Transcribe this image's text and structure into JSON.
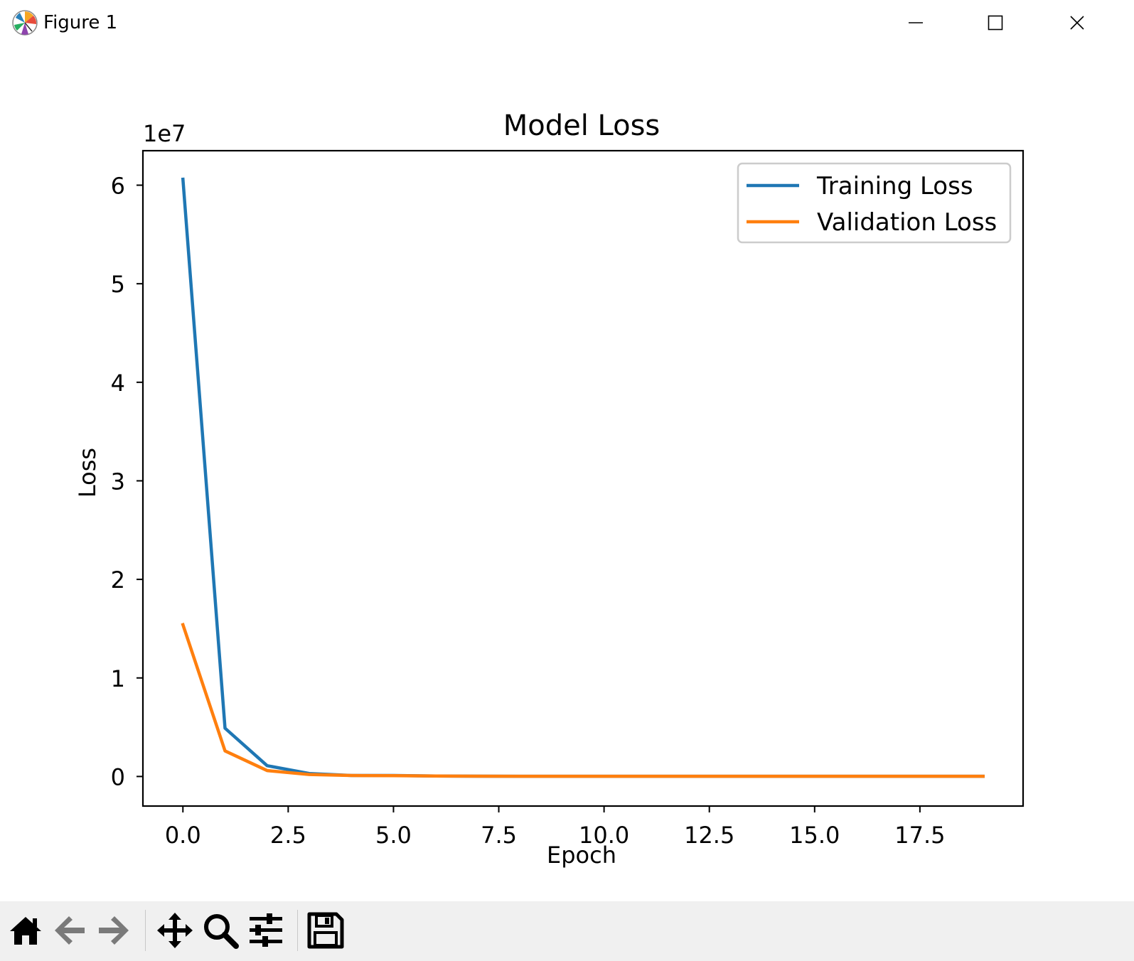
{
  "window": {
    "title": "Figure 1",
    "controls": [
      "minimize-icon",
      "maximize-icon",
      "close-icon"
    ]
  },
  "toolbar": {
    "buttons": [
      {
        "name": "home-icon"
      },
      {
        "name": "back-arrow-icon"
      },
      {
        "name": "forward-arrow-icon"
      },
      {
        "name": "pan-icon"
      },
      {
        "name": "zoom-icon"
      },
      {
        "name": "configure-subplots-icon"
      },
      {
        "name": "save-icon"
      }
    ]
  },
  "chart_data": {
    "type": "line",
    "title": "Model Loss",
    "xlabel": "Epoch",
    "ylabel": "Loss",
    "y_offset_text": "1e7",
    "xlim": [
      -0.95,
      19.95
    ],
    "ylim": [
      -0.3,
      6.35
    ],
    "y_units": "x 1e7",
    "xticks": [
      0.0,
      2.5,
      5.0,
      7.5,
      10.0,
      12.5,
      15.0,
      17.5
    ],
    "xtick_labels": [
      "0.0",
      "2.5",
      "5.0",
      "7.5",
      "10.0",
      "12.5",
      "15.0",
      "17.5"
    ],
    "yticks": [
      0,
      1,
      2,
      3,
      4,
      5,
      6
    ],
    "ytick_labels": [
      "0",
      "1",
      "2",
      "3",
      "4",
      "5",
      "6"
    ],
    "grid": false,
    "legend_position": "top-right",
    "x": [
      0,
      1,
      2,
      3,
      4,
      5,
      6,
      7,
      8,
      9,
      10,
      11,
      12,
      13,
      14,
      15,
      16,
      17,
      18,
      19
    ],
    "series": [
      {
        "name": "Training Loss",
        "color": "#1f77b4",
        "values": [
          6.06,
          0.49,
          0.11,
          0.03,
          0.01,
          0.01,
          0.005,
          0.003,
          0.002,
          0.002,
          0.002,
          0.002,
          0.002,
          0.002,
          0.002,
          0.002,
          0.002,
          0.002,
          0.002,
          0.002
        ]
      },
      {
        "name": "Validation Loss",
        "color": "#ff7f0e",
        "values": [
          1.54,
          0.26,
          0.06,
          0.02,
          0.01,
          0.008,
          0.005,
          0.003,
          0.002,
          0.002,
          0.002,
          0.002,
          0.002,
          0.002,
          0.002,
          0.002,
          0.002,
          0.002,
          0.002,
          0.002
        ]
      }
    ]
  }
}
